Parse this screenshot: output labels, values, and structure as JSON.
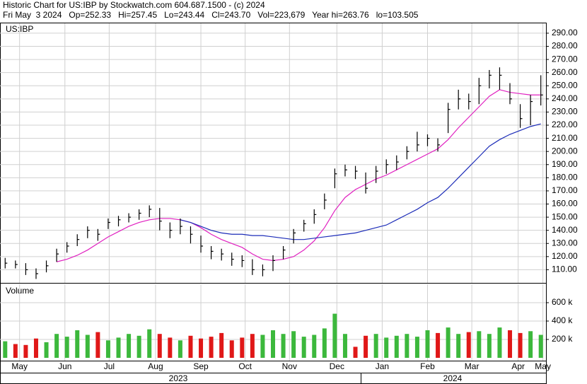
{
  "header": {
    "line1": "Historic Chart for US:IBP by Stockwatch.com 604.687.1500 - (c) 2024",
    "line2": "Fri May  3 2024   Op=252.33   Hi=257.45   Lo=243.44   Cl=243.70   Vol=223,679   Year hi=263.76   lo=103.505"
  },
  "chart_data": [
    {
      "type": "ohlc",
      "title": "US:IBP",
      "grid": true,
      "x": [
        0,
        1,
        2,
        3,
        4,
        5,
        6,
        7,
        8,
        9,
        10,
        11,
        12,
        13,
        14,
        15,
        16,
        17,
        18,
        19,
        20,
        21,
        22,
        23,
        24,
        25,
        26,
        27,
        28,
        29,
        30,
        31,
        32,
        33,
        34,
        35,
        36,
        37,
        38,
        39,
        40,
        41,
        42,
        43,
        44,
        45,
        46,
        47,
        48,
        49,
        50,
        51,
        52
      ],
      "high": [
        119,
        117,
        115,
        111,
        117,
        126,
        131,
        137,
        143,
        141,
        149,
        151,
        153,
        156,
        159,
        157,
        146,
        149,
        143,
        136,
        128,
        126,
        123,
        121,
        118,
        114,
        121,
        128,
        141,
        148,
        156,
        168,
        187,
        190,
        189,
        184,
        189,
        194,
        197,
        204,
        215,
        213,
        210,
        237,
        247,
        244,
        256,
        262,
        264,
        252,
        236,
        243,
        258
      ],
      "low": [
        111,
        111,
        106,
        103,
        108,
        116,
        123,
        128,
        134,
        132,
        141,
        143,
        146,
        148,
        150,
        140,
        134,
        137,
        130,
        123,
        118,
        117,
        113,
        112,
        106,
        105,
        109,
        118,
        130,
        139,
        145,
        156,
        172,
        181,
        179,
        168,
        176,
        183,
        186,
        194,
        200,
        204,
        200,
        214,
        232,
        232,
        236,
        248,
        247,
        236,
        218,
        220,
        235
      ],
      "close": [
        115,
        114,
        110,
        107,
        113,
        122,
        128,
        133,
        140,
        137,
        146,
        148,
        150,
        153,
        156,
        147,
        140,
        143,
        137,
        128,
        124,
        122,
        118,
        117,
        110,
        110,
        117,
        125,
        138,
        145,
        152,
        163,
        183,
        186,
        185,
        172,
        185,
        190,
        192,
        200,
        205,
        210,
        205,
        232,
        240,
        238,
        250,
        258,
        258,
        240,
        225,
        238,
        243
      ],
      "series": [
        {
          "color": "#e020c0",
          "values": [
            null,
            null,
            null,
            null,
            null,
            116,
            118,
            121,
            125,
            130,
            135,
            139,
            143,
            146,
            148,
            149,
            149,
            148,
            146,
            142,
            137,
            133,
            130,
            127,
            122,
            118,
            117,
            118,
            120,
            125,
            132,
            142,
            155,
            165,
            171,
            175,
            179,
            182,
            186,
            190,
            194,
            198,
            202,
            209,
            218,
            226,
            234,
            242,
            247,
            245,
            244,
            243,
            243
          ]
        },
        {
          "color": "#1c2cb8",
          "values": [
            null,
            null,
            null,
            null,
            null,
            null,
            null,
            null,
            null,
            null,
            null,
            null,
            null,
            null,
            null,
            null,
            null,
            148,
            146,
            143,
            140,
            138,
            137,
            137,
            136,
            136,
            135,
            134,
            133,
            133,
            134,
            135,
            136,
            137,
            138,
            140,
            142,
            144,
            148,
            152,
            156,
            161,
            165,
            172,
            180,
            188,
            196,
            204,
            209,
            213,
            216,
            219,
            221
          ]
        }
      ],
      "xlim": [
        -0.5,
        52.5
      ],
      "ylim": [
        100,
        297.5
      ],
      "yticks": [
        {
          "value": 110,
          "label": "110.00"
        },
        {
          "value": 120,
          "label": "120.00"
        },
        {
          "value": 130,
          "label": "130.00"
        },
        {
          "value": 140,
          "label": "140.00"
        },
        {
          "value": 150,
          "label": "150.00"
        },
        {
          "value": 160,
          "label": "160.00"
        },
        {
          "value": 170,
          "label": "170.00"
        },
        {
          "value": 180,
          "label": "180.00"
        },
        {
          "value": 190,
          "label": "190.00"
        },
        {
          "value": 200,
          "label": "200.00"
        },
        {
          "value": 210,
          "label": "210.00"
        },
        {
          "value": 220,
          "label": "220.00"
        },
        {
          "value": 230,
          "label": "230.00"
        },
        {
          "value": 240,
          "label": "240.00"
        },
        {
          "value": 250,
          "label": "250.00"
        },
        {
          "value": 260,
          "label": "260.00"
        },
        {
          "value": 270,
          "label": "270.00"
        },
        {
          "value": 280,
          "label": "280.00"
        },
        {
          "value": 290,
          "label": "290.00"
        }
      ],
      "xticks": [
        {
          "value": 1.4,
          "label": "May"
        },
        {
          "value": 5.8,
          "label": "Jun"
        },
        {
          "value": 10.1,
          "label": "Jul"
        },
        {
          "value": 14.6,
          "label": "Aug"
        },
        {
          "value": 19.0,
          "label": "Sep"
        },
        {
          "value": 23.3,
          "label": "Oct"
        },
        {
          "value": 27.6,
          "label": "Nov"
        },
        {
          "value": 32.2,
          "label": "Dec"
        },
        {
          "value": 36.6,
          "label": "Jan"
        },
        {
          "value": 41.0,
          "label": "Feb"
        },
        {
          "value": 45.3,
          "label": "Mar"
        },
        {
          "value": 49.8,
          "label": "Apr"
        },
        {
          "value": 52.2,
          "label": "May"
        }
      ],
      "years": [
        "2023",
        "2024"
      ]
    },
    {
      "type": "volume",
      "title": "Volume",
      "grid": true,
      "up_color": "#3cb83c",
      "down_color": "#e01818",
      "values": [
        180000,
        150000,
        140000,
        210000,
        170000,
        260000,
        230000,
        300000,
        250000,
        280000,
        190000,
        220000,
        260000,
        240000,
        310000,
        260000,
        220000,
        190000,
        240000,
        210000,
        230000,
        270000,
        190000,
        220000,
        260000,
        250000,
        300000,
        260000,
        290000,
        230000,
        250000,
        320000,
        480000,
        260000,
        120000,
        240000,
        260000,
        220000,
        240000,
        260000,
        230000,
        300000,
        270000,
        330000,
        260000,
        280000,
        290000,
        260000,
        330000,
        300000,
        270000,
        290000,
        250000
      ],
      "ylim": [
        0,
        800000
      ],
      "yticks": [
        {
          "value": 200000,
          "label": "200 k"
        },
        {
          "value": 400000,
          "label": "400 k"
        },
        {
          "value": 600000,
          "label": "600 k"
        }
      ]
    }
  ]
}
